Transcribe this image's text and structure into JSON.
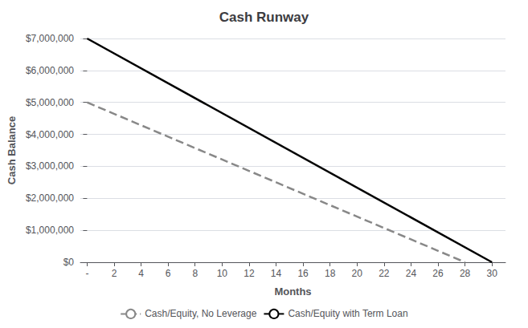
{
  "chart_data": {
    "type": "line",
    "title": "Cash Runway",
    "xlabel": "Months",
    "ylabel": "Cash Balance",
    "series": [
      {
        "name": "Cash/Equity, No Leverage",
        "color": "#888888",
        "line_style": "dashed",
        "x": [
          0,
          28
        ],
        "values": [
          5000000,
          0
        ]
      },
      {
        "name": "Cash/Equity with Term Loan",
        "color": "#000000",
        "line_style": "solid",
        "x": [
          0,
          30
        ],
        "values": [
          7000000,
          0
        ]
      }
    ],
    "xlim": [
      -0.5,
      31
    ],
    "xticks": [
      {
        "value": 0,
        "label": "-"
      },
      2,
      4,
      6,
      8,
      10,
      12,
      14,
      16,
      18,
      20,
      22,
      24,
      26,
      28,
      30
    ],
    "ylim": [
      0,
      7000000
    ],
    "yticks": [
      {
        "value": 0,
        "label": "$0"
      },
      {
        "value": 1000000,
        "label": "$1,000,000"
      },
      {
        "value": 2000000,
        "label": "$2,000,000"
      },
      {
        "value": 3000000,
        "label": "$3,000,000"
      },
      {
        "value": 4000000,
        "label": "$4,000,000"
      },
      {
        "value": 5000000,
        "label": "$5,000,000"
      },
      {
        "value": 6000000,
        "label": "$6,000,000"
      },
      {
        "value": 7000000,
        "label": "$7,000,000"
      }
    ],
    "grid": true,
    "legend": "bottom"
  }
}
